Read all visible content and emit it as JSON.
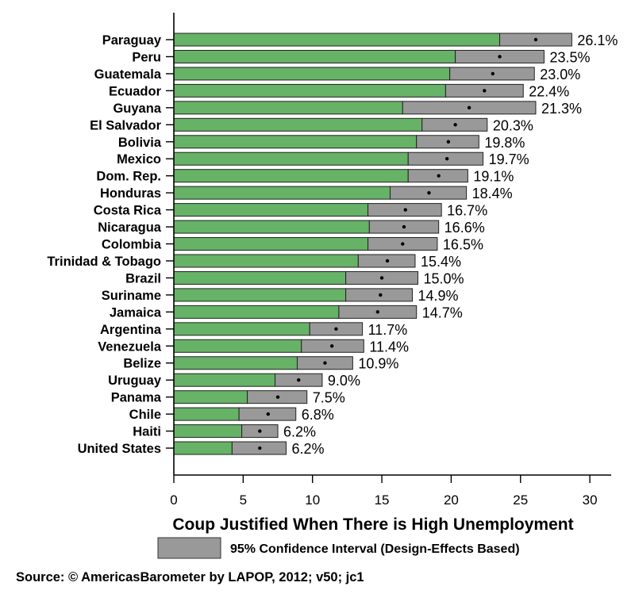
{
  "chart_data": {
    "type": "bar",
    "orientation": "horizontal",
    "title": "Coup Justified When There is High Unemployment",
    "xlabel": "Coup Justified When There is High Unemployment",
    "ylabel": "",
    "xlim": [
      0,
      31.5
    ],
    "xticks": [
      0,
      5,
      10,
      15,
      20,
      25,
      30
    ],
    "xtick_labels": [
      "0",
      "5",
      "10",
      "15",
      "20",
      "25",
      "30"
    ],
    "grid": false,
    "legend": {
      "position": "bottom",
      "entries": [
        {
          "label": "95% Confidence Interval (Design-Effects Based)",
          "color": "#999999"
        }
      ]
    },
    "source": "Source: © AmericasBarometer by LAPOP, 2012; v50; jc1",
    "colors": {
      "bar": "#66b266",
      "ci": "#999999",
      "border": "#222222",
      "point": "#000000"
    },
    "categories": [
      "Paraguay",
      "Peru",
      "Guatemala",
      "Ecuador",
      "Guyana",
      "El Salvador",
      "Bolivia",
      "Mexico",
      "Dom. Rep.",
      "Honduras",
      "Costa Rica",
      "Nicaragua",
      "Colombia",
      "Trinidad & Tobago",
      "Brazil",
      "Suriname",
      "Jamaica",
      "Argentina",
      "Venezuela",
      "Belize",
      "Uruguay",
      "Panama",
      "Chile",
      "Haiti",
      "United States"
    ],
    "values": [
      26.1,
      23.5,
      23.0,
      22.4,
      21.3,
      20.3,
      19.8,
      19.7,
      19.1,
      18.4,
      16.7,
      16.6,
      16.5,
      15.4,
      15.0,
      14.9,
      14.7,
      11.7,
      11.4,
      10.9,
      9.0,
      7.5,
      6.8,
      6.2,
      6.2
    ],
    "value_labels": [
      "26.1%",
      "23.5%",
      "23.0%",
      "22.4%",
      "21.3%",
      "20.3%",
      "19.8%",
      "19.7%",
      "19.1%",
      "18.4%",
      "16.7%",
      "16.6%",
      "16.5%",
      "15.4%",
      "15.0%",
      "14.9%",
      "14.7%",
      "11.7%",
      "11.4%",
      "10.9%",
      "9.0%",
      "7.5%",
      "6.8%",
      "6.2%",
      "6.2%"
    ],
    "ci_lower": [
      23.5,
      20.3,
      19.9,
      19.6,
      16.5,
      17.9,
      17.5,
      16.9,
      16.9,
      15.6,
      14.0,
      14.1,
      14.0,
      13.3,
      12.4,
      12.4,
      11.9,
      9.8,
      9.2,
      8.9,
      7.3,
      5.3,
      4.7,
      4.9,
      4.2
    ],
    "ci_upper": [
      28.7,
      26.7,
      26.0,
      25.2,
      26.1,
      22.6,
      22.0,
      22.3,
      21.2,
      21.1,
      19.3,
      19.1,
      19.0,
      17.4,
      17.6,
      17.2,
      17.5,
      13.6,
      13.7,
      12.9,
      10.7,
      9.6,
      8.8,
      7.5,
      8.1
    ]
  }
}
